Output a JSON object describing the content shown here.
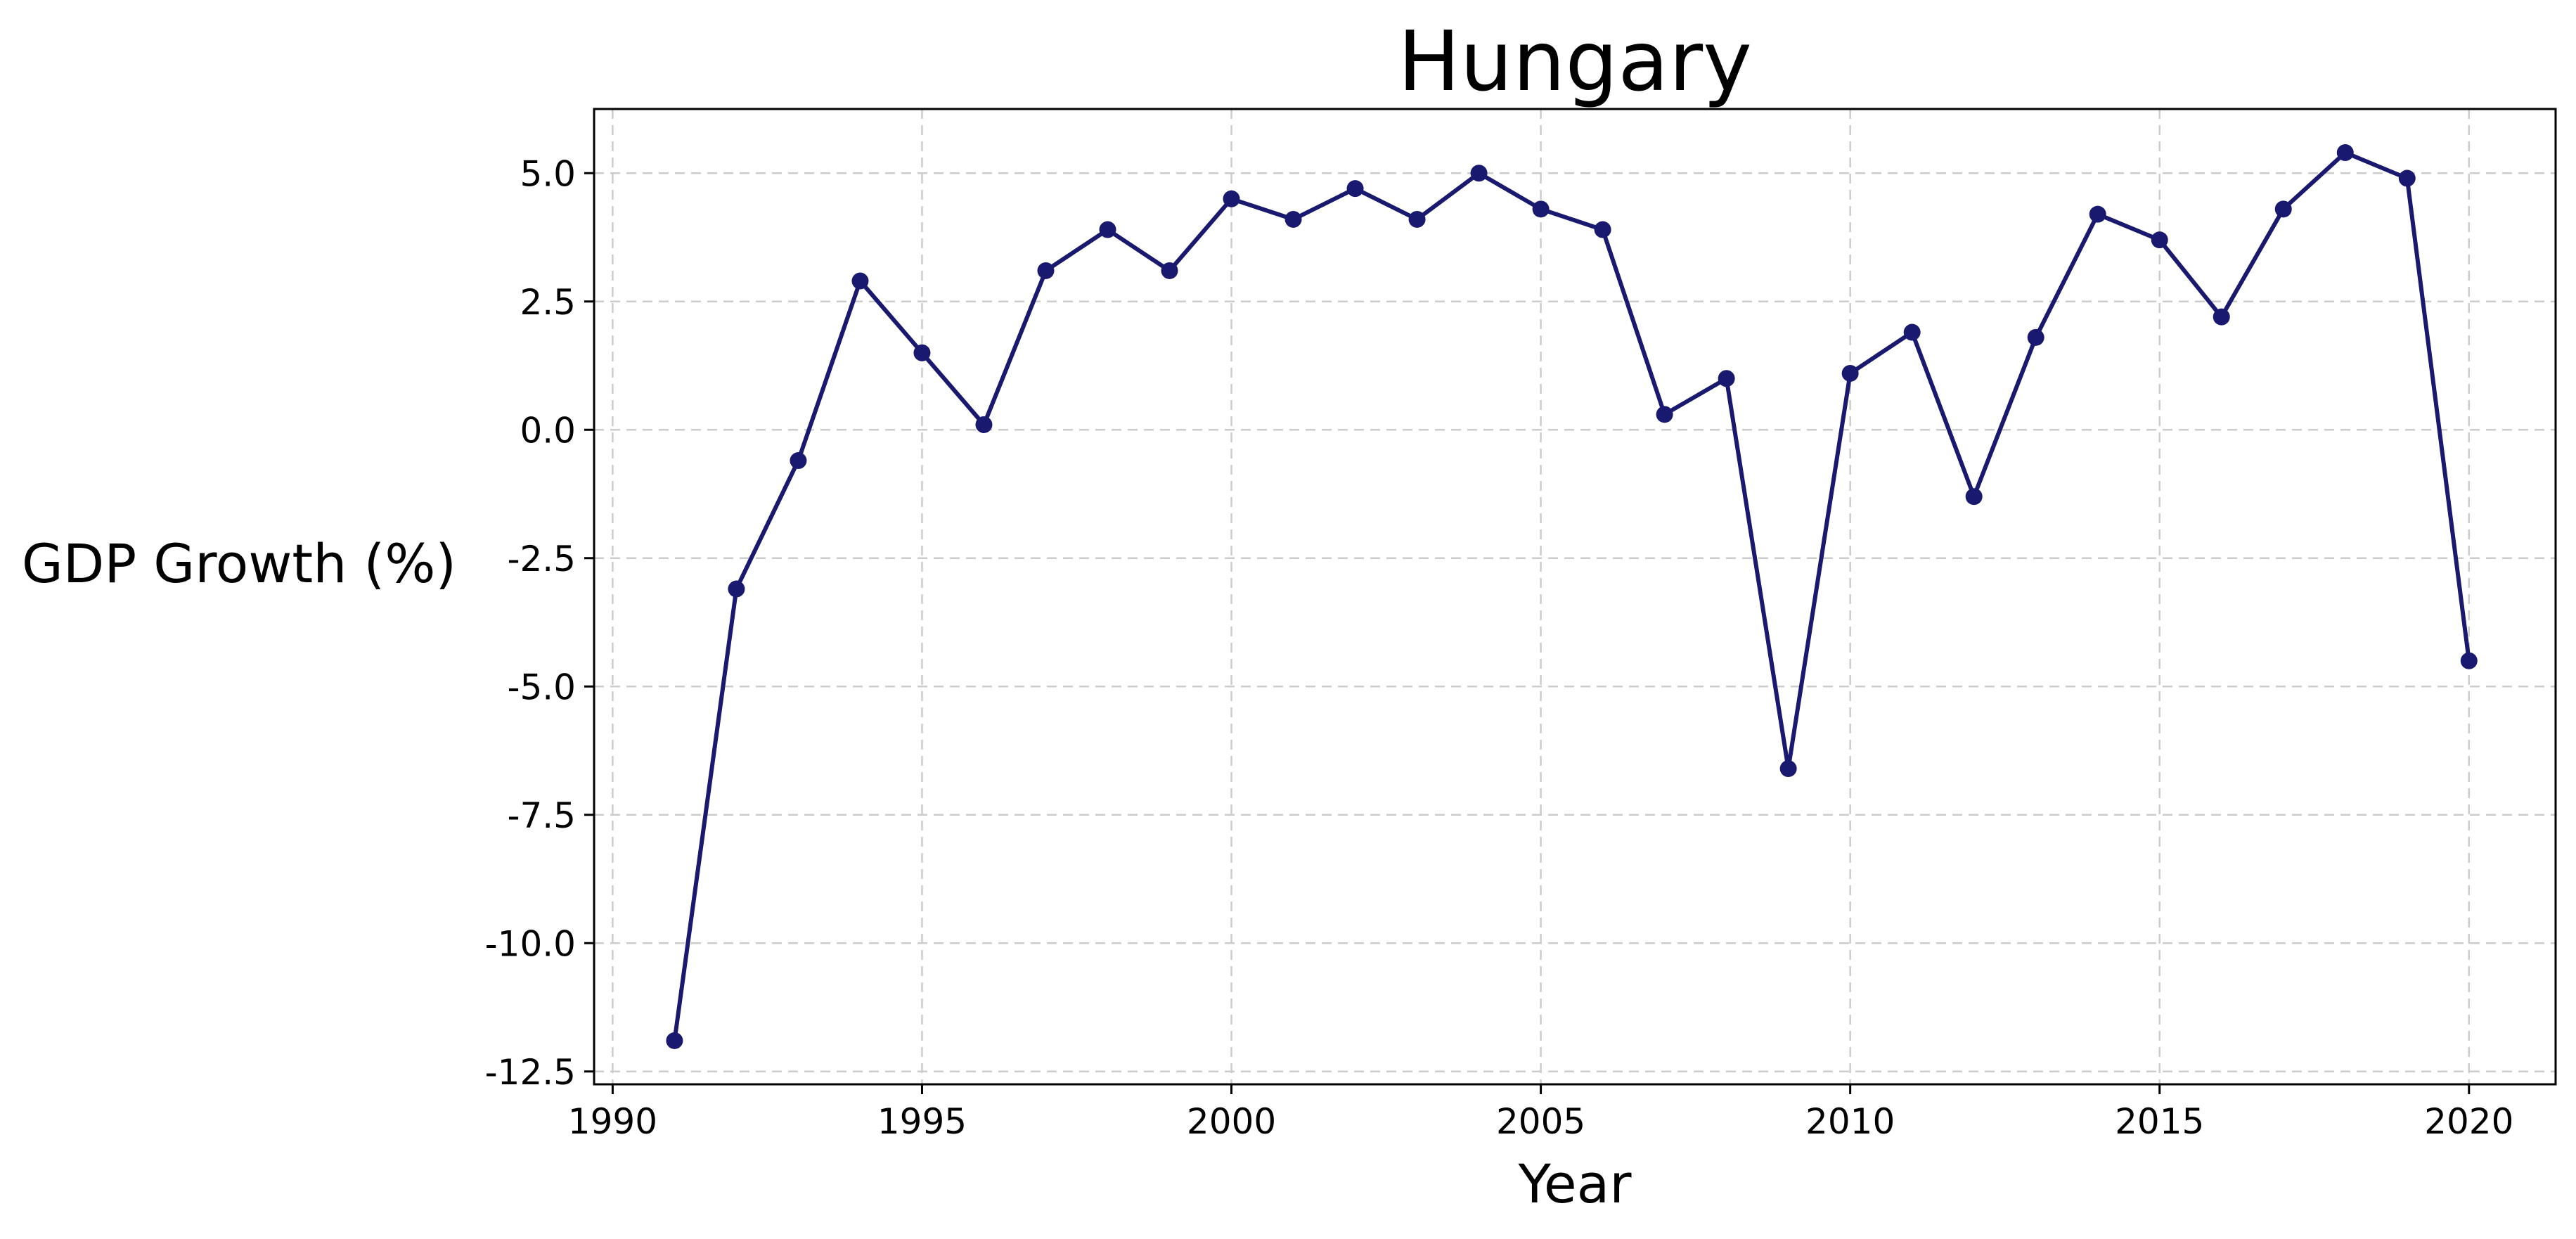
{
  "chart_data": {
    "type": "line",
    "title": "Hungary",
    "xlabel": "Year",
    "ylabel": "GDP Growth (%)",
    "xlim": [
      1989.7,
      2021.4
    ],
    "ylim": [
      -12.75,
      6.25
    ],
    "xticks": [
      1990,
      1995,
      2000,
      2005,
      2010,
      2015,
      2020
    ],
    "xtick_labels": [
      "1990",
      "1995",
      "2000",
      "2005",
      "2010",
      "2015",
      "2020"
    ],
    "yticks": [
      -12.5,
      -10.0,
      -7.5,
      -5.0,
      -2.5,
      0.0,
      2.5,
      5.0
    ],
    "ytick_labels": [
      "-12.5",
      "-10.0",
      "-7.5",
      "-5.0",
      "-2.5",
      "0.0",
      "2.5",
      "5.0"
    ],
    "grid": true,
    "color": "#191970",
    "x": [
      1991,
      1992,
      1993,
      1994,
      1995,
      1996,
      1997,
      1998,
      1999,
      2000,
      2001,
      2002,
      2003,
      2004,
      2005,
      2006,
      2007,
      2008,
      2009,
      2010,
      2011,
      2012,
      2013,
      2014,
      2015,
      2016,
      2017,
      2018,
      2019,
      2020
    ],
    "values": [
      -11.9,
      -3.1,
      -0.6,
      2.9,
      1.5,
      0.1,
      3.1,
      3.9,
      3.1,
      4.5,
      4.1,
      4.7,
      4.1,
      5.0,
      4.3,
      3.9,
      0.3,
      1.0,
      -6.6,
      1.1,
      1.9,
      -1.3,
      1.8,
      4.2,
      3.7,
      2.2,
      4.3,
      5.4,
      4.9,
      -4.5
    ]
  }
}
